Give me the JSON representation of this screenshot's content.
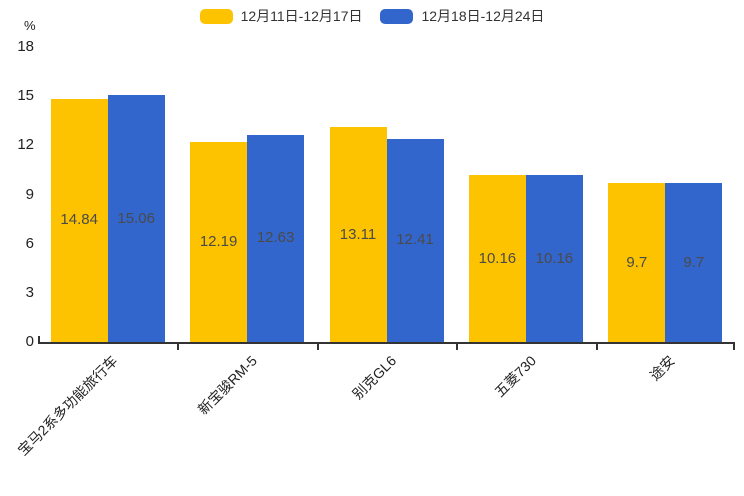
{
  "chart_data": {
    "type": "bar",
    "title": "",
    "categories": [
      "宝马2系多功能旅行车",
      "新宝骏RM-5",
      "别克GL6",
      "五菱730",
      "途安"
    ],
    "series": [
      {
        "name": "12月11日-12月17日",
        "color": "#FDC300",
        "values": [
          14.84,
          12.19,
          13.11,
          10.16,
          9.7
        ]
      },
      {
        "name": "12月18日-12月24日",
        "color": "#3366CC",
        "values": [
          15.06,
          12.63,
          12.41,
          10.16,
          9.7
        ]
      }
    ],
    "ylabel": "%",
    "ylim": [
      0,
      18
    ],
    "yticks": [
      0,
      3,
      6,
      9,
      12,
      15,
      18
    ],
    "grid": false,
    "legend_position": "top-center",
    "value_labels_inside_bars": true,
    "axis_color": "#333333",
    "value_label_color": "#4a4a4a",
    "tick_label_color": "#222222"
  }
}
